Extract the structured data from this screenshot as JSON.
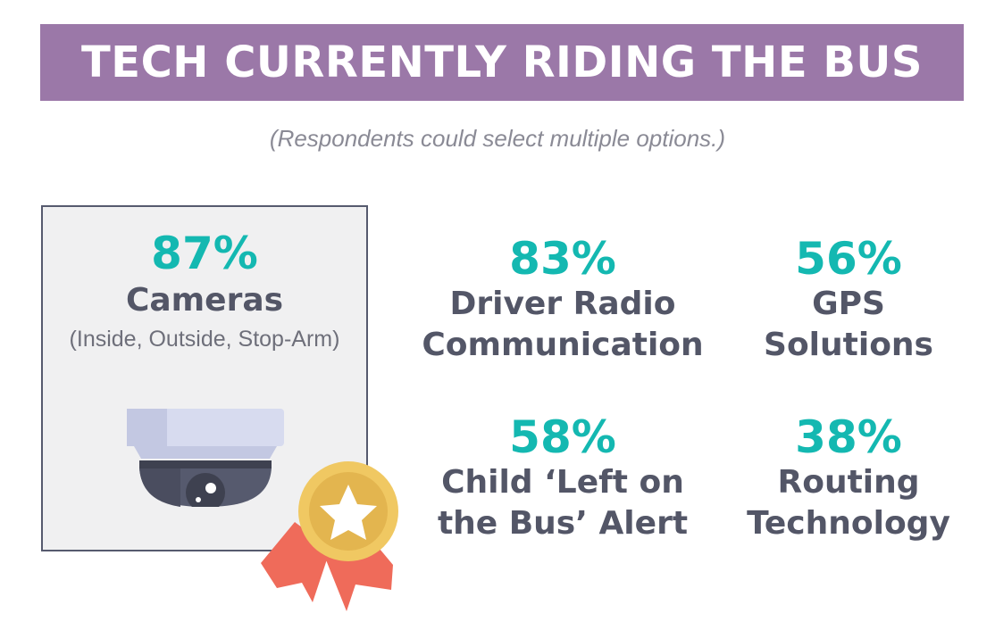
{
  "header": {
    "title": "TECH CURRENTLY RIDING THE BUS"
  },
  "subtitle": "(Respondents could select multiple options.)",
  "featured": {
    "percent": "87%",
    "label": "Cameras",
    "note": "(Inside, Outside, Stop-Arm)",
    "icon": "security-camera-icon",
    "badge_icon": "award-ribbon-icon"
  },
  "stats": [
    {
      "percent": "83%",
      "line1": "Driver Radio",
      "line2": "Communication"
    },
    {
      "percent": "56%",
      "line1": "GPS",
      "line2": "Solutions"
    },
    {
      "percent": "58%",
      "line1": "Child ‘Left on",
      "line2": "the Bus’ Alert"
    },
    {
      "percent": "38%",
      "line1": "Routing",
      "line2": "Technology"
    }
  ],
  "colors": {
    "banner": "#9b78a8",
    "percent": "#14b8b1",
    "label": "#535667",
    "ribbon": "#ef6b5a",
    "medal": "#f0c862"
  }
}
